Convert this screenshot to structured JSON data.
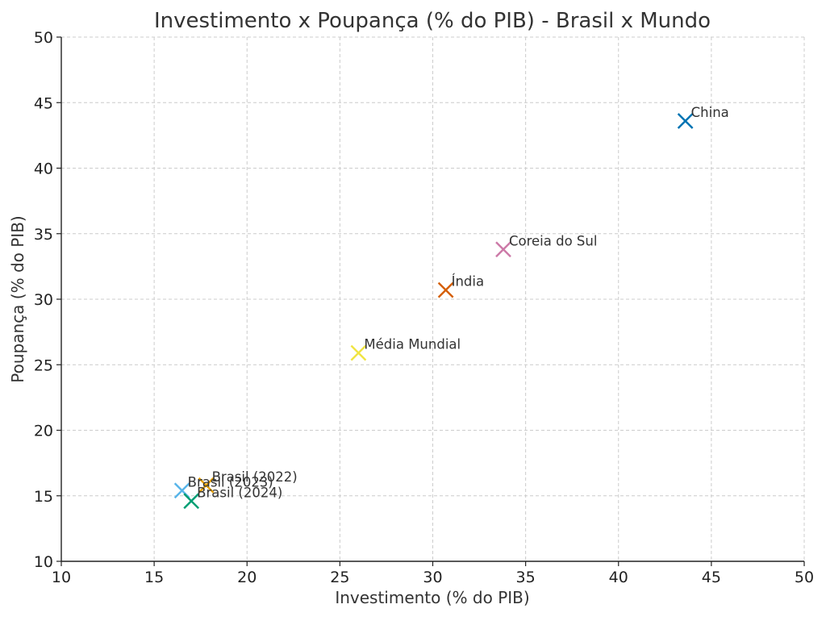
{
  "chart_data": {
    "type": "scatter",
    "title": "Investimento x Poupança (% do PIB) - Brasil x Mundo",
    "xlabel": "Investimento (% do PIB)",
    "ylabel": "Poupança (% do PIB)",
    "xlim": [
      10,
      50
    ],
    "ylim": [
      10,
      50
    ],
    "xticks": [
      10,
      15,
      20,
      25,
      30,
      35,
      40,
      45,
      50
    ],
    "yticks": [
      10,
      15,
      20,
      25,
      30,
      35,
      40,
      45,
      50
    ],
    "grid": true,
    "marker": "x",
    "points": [
      {
        "label": "Brasil (2022)",
        "x": 17.8,
        "y": 15.8,
        "color": "#E69F00"
      },
      {
        "label": "Brasil (2023)",
        "x": 16.5,
        "y": 15.4,
        "color": "#56B4E9"
      },
      {
        "label": "Brasil (2024)",
        "x": 17.0,
        "y": 14.6,
        "color": "#009E73"
      },
      {
        "label": "Média Mundial",
        "x": 26.0,
        "y": 25.9,
        "color": "#F0E442"
      },
      {
        "label": "Índia",
        "x": 30.7,
        "y": 30.7,
        "color": "#D55E00"
      },
      {
        "label": "Coreia do Sul",
        "x": 33.8,
        "y": 33.8,
        "color": "#CC79A7"
      },
      {
        "label": "China",
        "x": 43.6,
        "y": 43.6,
        "color": "#0072B2"
      }
    ]
  }
}
